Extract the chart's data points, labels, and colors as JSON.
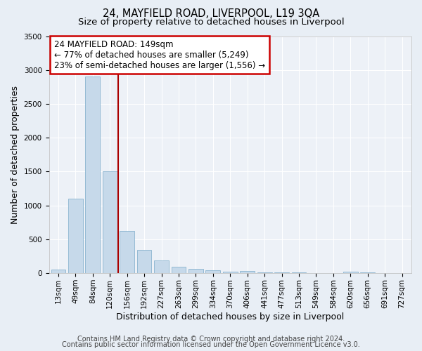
{
  "title": "24, MAYFIELD ROAD, LIVERPOOL, L19 3QA",
  "subtitle": "Size of property relative to detached houses in Liverpool",
  "xlabel": "Distribution of detached houses by size in Liverpool",
  "ylabel": "Number of detached properties",
  "categories": [
    "13sqm",
    "49sqm",
    "84sqm",
    "120sqm",
    "156sqm",
    "192sqm",
    "227sqm",
    "263sqm",
    "299sqm",
    "334sqm",
    "370sqm",
    "406sqm",
    "441sqm",
    "477sqm",
    "513sqm",
    "549sqm",
    "584sqm",
    "620sqm",
    "656sqm",
    "691sqm",
    "727sqm"
  ],
  "values": [
    50,
    1100,
    2900,
    1500,
    620,
    340,
    185,
    100,
    65,
    40,
    25,
    35,
    15,
    10,
    8,
    5,
    5,
    20,
    8,
    5,
    5
  ],
  "bar_color": "#c6d9ea",
  "bar_edge_color": "#7aaac8",
  "red_line_x": 3.5,
  "annotation_line1": "24 MAYFIELD ROAD: 149sqm",
  "annotation_line2": "← 77% of detached houses are smaller (5,249)",
  "annotation_line3": "23% of semi-detached houses are larger (1,556) →",
  "vline_color": "#aa0000",
  "annotation_box_edge": "#cc0000",
  "ylim": [
    0,
    3500
  ],
  "yticks": [
    0,
    500,
    1000,
    1500,
    2000,
    2500,
    3000,
    3500
  ],
  "footer_line1": "Contains HM Land Registry data © Crown copyright and database right 2024.",
  "footer_line2": "Contains public sector information licensed under the Open Government Licence v3.0.",
  "bg_color": "#e8eef5",
  "plot_bg_color": "#edf1f7",
  "title_fontsize": 10.5,
  "subtitle_fontsize": 9.5,
  "axis_label_fontsize": 9,
  "tick_fontsize": 7.5,
  "footer_fontsize": 7,
  "annotation_fontsize": 8.5
}
